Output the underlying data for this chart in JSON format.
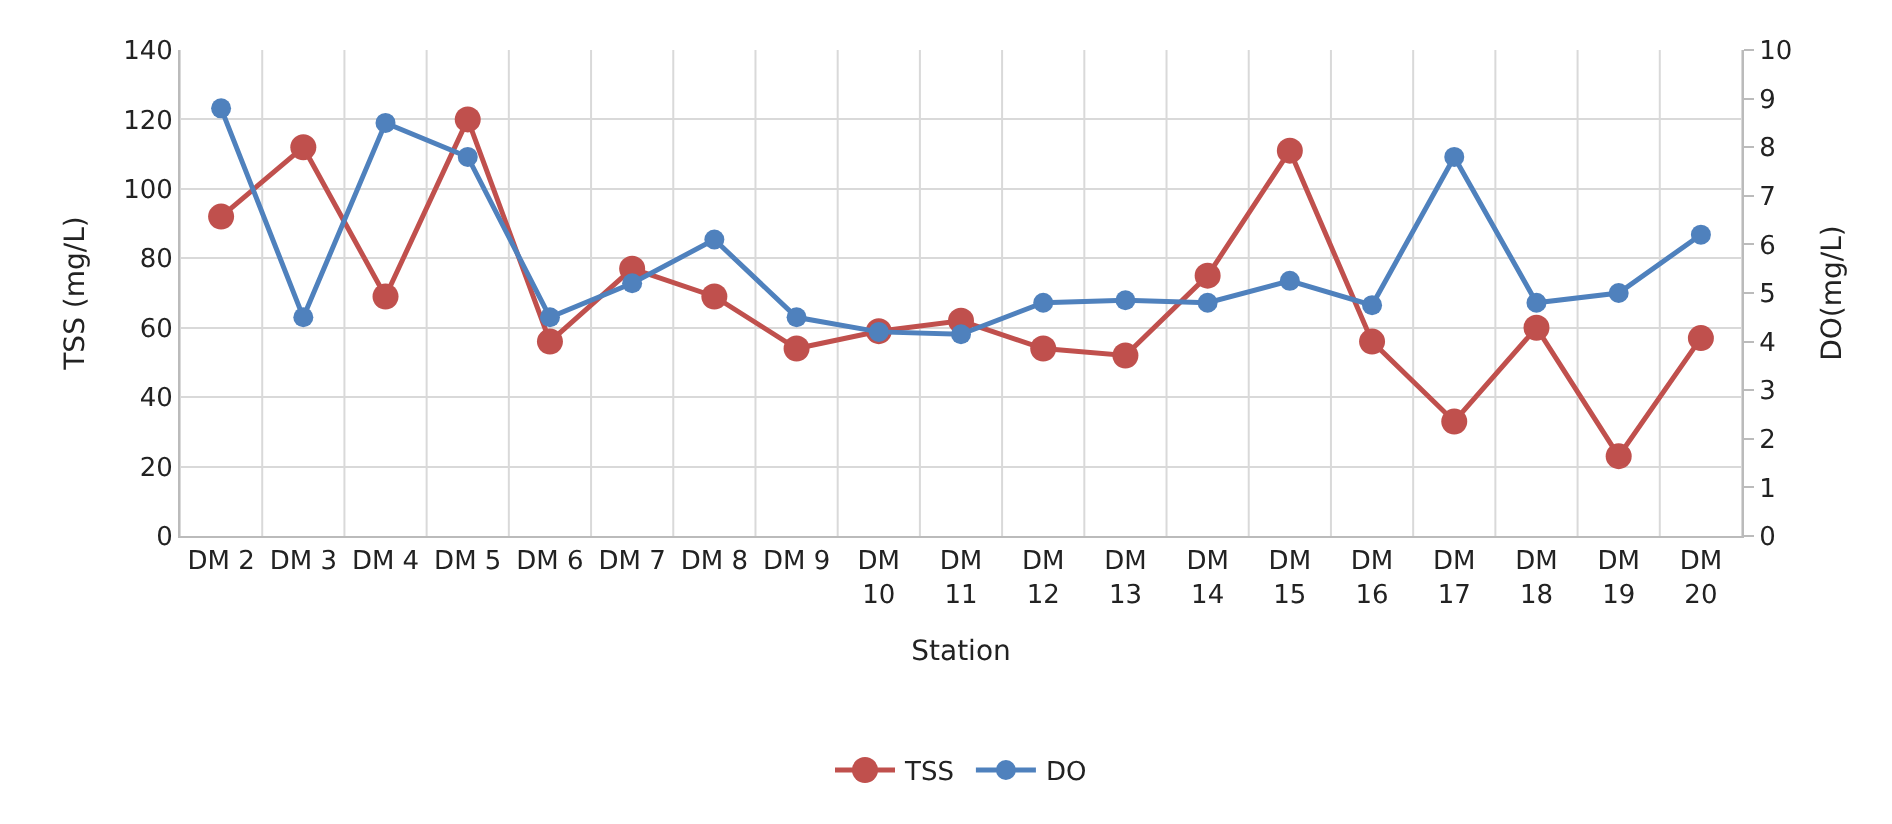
{
  "chart_data": {
    "type": "line",
    "xlabel": "Station",
    "ylabel": "TSS (mg/L)",
    "y2label": "DO(mg/L)",
    "categories": [
      "DM 2",
      "DM 3",
      "DM 4",
      "DM 5",
      "DM 6",
      "DM 7",
      "DM 8",
      "DM 9",
      "DM 10",
      "DM 11",
      "DM 12",
      "DM 13",
      "DM 14",
      "DM 15",
      "DM 16",
      "DM 17",
      "DM 18",
      "DM 19",
      "DM 20"
    ],
    "series": [
      {
        "name": "TSS",
        "color": "#c0504d",
        "values": [
          92,
          112,
          69,
          120,
          56,
          77,
          69,
          54,
          59,
          62,
          54,
          52,
          75,
          111,
          56,
          33,
          60,
          23,
          57
        ]
      },
      {
        "name": "DO",
        "color": "#4f81bd",
        "axis": "y2",
        "values": [
          8.8,
          4.5,
          8.5,
          7.8,
          4.5,
          5.2,
          6.1,
          4.5,
          4.2,
          4.15,
          4.8,
          4.85,
          4.8,
          5.25,
          4.75,
          7.8,
          4.8,
          5.0,
          6.2
        ]
      }
    ],
    "ylim": [
      0,
      140
    ],
    "yticks": [
      0,
      20,
      40,
      60,
      80,
      100,
      120,
      140
    ],
    "y2lim": [
      0,
      10
    ],
    "y2ticks": [
      0,
      1,
      2,
      3,
      4,
      5,
      6,
      7,
      8,
      9,
      10
    ],
    "grid": true,
    "legend": "bottom",
    "marker": "circle",
    "line_style": "solid"
  }
}
